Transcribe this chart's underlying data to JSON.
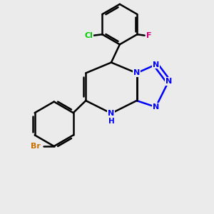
{
  "background_color": "#ebebeb",
  "bond_color": "#000000",
  "nitrogen_color": "#0000ff",
  "bromine_color": "#c87000",
  "chlorine_color": "#00cc00",
  "fluorine_color": "#cc0077",
  "nh_color": "#0000ff",
  "line_width": 1.8,
  "title": "",
  "xlim": [
    0,
    10
  ],
  "ylim": [
    0,
    10
  ],
  "figsize": [
    3.0,
    3.0
  ],
  "dpi": 100
}
